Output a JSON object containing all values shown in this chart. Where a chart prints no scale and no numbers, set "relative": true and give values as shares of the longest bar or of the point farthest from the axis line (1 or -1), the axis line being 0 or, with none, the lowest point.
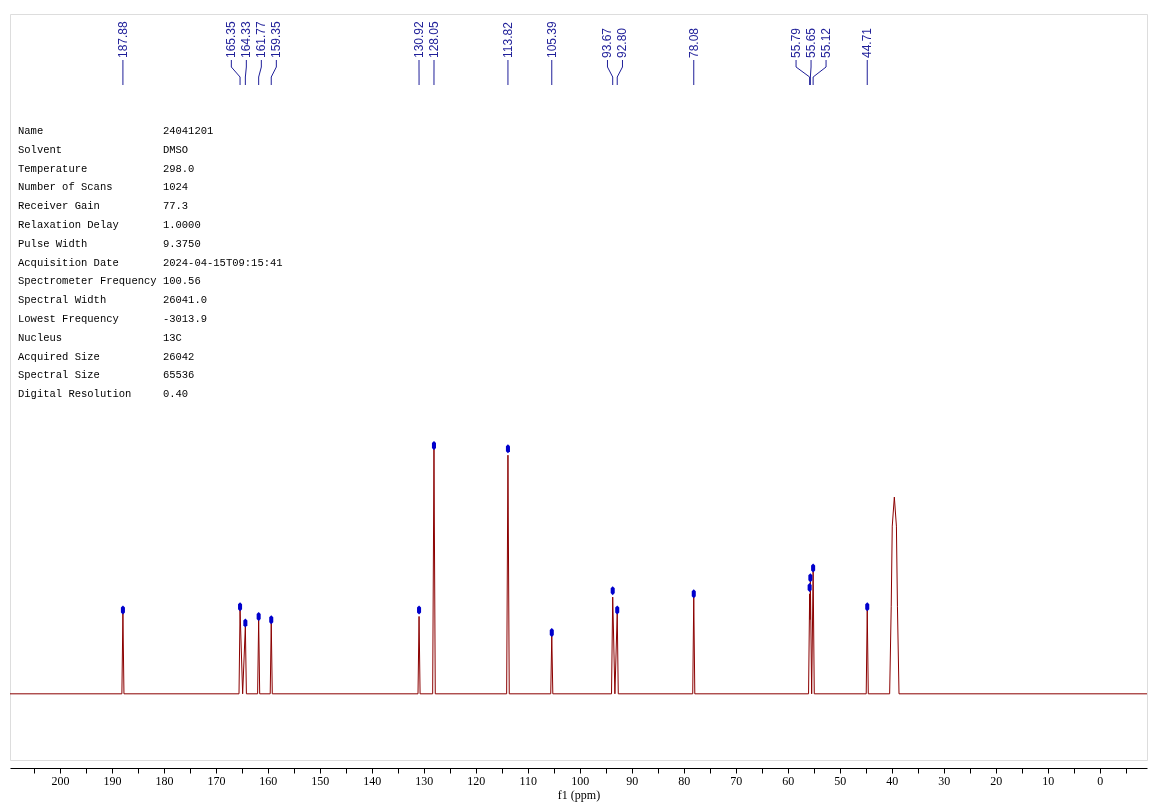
{
  "chart_data": {
    "type": "line",
    "relative": true,
    "xlabel": "f1 (ppm)",
    "tick_labels": "x",
    "line_style": "solid",
    "xlim": [
      209.6,
      -9.1
    ],
    "xticks": [
      {
        "value": 205,
        "label": null
      },
      200,
      {
        "value": 195,
        "label": null
      },
      190,
      {
        "value": 185,
        "label": null
      },
      180,
      {
        "value": 175,
        "label": null
      },
      170,
      {
        "value": 165,
        "label": null
      },
      160,
      {
        "value": 155,
        "label": null
      },
      150,
      {
        "value": 145,
        "label": null
      },
      140,
      {
        "value": 135,
        "label": null
      },
      130,
      {
        "value": 125,
        "label": null
      },
      120,
      {
        "value": 115,
        "label": null
      },
      110,
      {
        "value": 105,
        "label": null
      },
      100,
      {
        "value": 95,
        "label": null
      },
      90,
      {
        "value": 85,
        "label": null
      },
      80,
      {
        "value": 75,
        "label": null
      },
      70,
      {
        "value": 65,
        "label": null
      },
      60,
      {
        "value": 55,
        "label": null
      },
      50,
      {
        "value": 45,
        "label": null
      },
      40,
      {
        "value": 35,
        "label": null
      },
      30,
      {
        "value": 25,
        "label": null
      },
      20,
      {
        "value": 15,
        "label": null
      },
      10,
      {
        "value": 5,
        "label": null
      },
      0,
      {
        "value": -5,
        "label": null
      }
    ],
    "x": [
      209.6,
      188.08,
      187.88,
      187.68,
      165.55,
      165.35,
      164.85,
      164.33,
      164.13,
      161.97,
      161.77,
      161.57,
      159.55,
      159.35,
      159.15,
      131.12,
      130.92,
      130.72,
      128.3,
      128.05,
      127.8,
      114.07,
      113.82,
      113.57,
      105.59,
      105.39,
      105.19,
      93.9,
      93.67,
      93.25,
      92.8,
      92.6,
      78.28,
      78.08,
      77.88,
      56.0,
      55.79,
      55.72,
      55.65,
      55.4,
      55.12,
      54.9,
      44.91,
      44.71,
      44.51,
      40.4,
      40.1,
      39.9,
      39.5,
      39.1,
      38.9,
      38.6,
      -9.1
    ],
    "series": [
      {
        "color": "#8b0000",
        "values": [
          0.23,
          0.23,
          0.48,
          0.23,
          0.23,
          0.49,
          0.23,
          0.44,
          0.23,
          0.23,
          0.46,
          0.23,
          0.23,
          0.45,
          0.23,
          0.23,
          0.47,
          0.23,
          0.23,
          0.99,
          0.23,
          0.23,
          0.97,
          0.23,
          0.23,
          0.41,
          0.23,
          0.23,
          0.53,
          0.23,
          0.48,
          0.23,
          0.23,
          0.53,
          0.23,
          0.23,
          0.54,
          0.46,
          0.58,
          0.23,
          0.61,
          0.23,
          0.23,
          0.49,
          0.23,
          0.23,
          0.5,
          0.75,
          0.84,
          0.75,
          0.5,
          0.23,
          0.23
        ]
      },
      {
        "type": "scatter",
        "color": "#0000cc",
        "x": [
          187.88,
          165.35,
          164.33,
          161.77,
          159.35,
          130.92,
          128.05,
          113.82,
          105.39,
          93.67,
          92.8,
          78.08,
          55.79,
          55.65,
          55.12,
          44.71
        ],
        "values": [
          0.49,
          0.5,
          0.45,
          0.47,
          0.46,
          0.49,
          1.0,
          0.99,
          0.42,
          0.55,
          0.49,
          0.54,
          0.56,
          0.59,
          0.62,
          0.5
        ]
      }
    ],
    "annotations": [
      {
        "text": "187.88",
        "x": 187.88
      },
      {
        "text": "165.35",
        "x": 165.35
      },
      {
        "text": "164.33",
        "x": 164.33
      },
      {
        "text": "161.77",
        "x": 161.77
      },
      {
        "text": "159.35",
        "x": 159.35
      },
      {
        "text": "130.92",
        "x": 130.92
      },
      {
        "text": "128.05",
        "x": 128.05
      },
      {
        "text": "113.82",
        "x": 113.82
      },
      {
        "text": "105.39",
        "x": 105.39
      },
      {
        "text": "93.67",
        "x": 93.67
      },
      {
        "text": "92.80",
        "x": 92.8
      },
      {
        "text": "78.08",
        "x": 78.08
      },
      {
        "text": "55.79",
        "x": 55.79
      },
      {
        "text": "55.65",
        "x": 55.65
      },
      {
        "text": "55.12",
        "x": 55.12
      },
      {
        "text": "44.71",
        "x": 44.71
      },
      "Name",
      "24041201",
      "Solvent",
      "DMSO",
      "Temperature",
      "298.0",
      "Number of Scans",
      "1024",
      "Receiver Gain",
      "77.3",
      "Relaxation Delay",
      "1.0000",
      "Pulse Width",
      "9.3750",
      "Acquisition Date",
      "2024-04-15T09:15:41",
      "Spectrometer Frequency",
      "100.56",
      "Spectral Width",
      "26041.0",
      "Lowest Frequency",
      "-3013.9",
      "Nucleus",
      "13C",
      "Acquired Size",
      "26042",
      "Spectral Size",
      "65536",
      "Digital Resolution",
      "0.40"
    ]
  }
}
